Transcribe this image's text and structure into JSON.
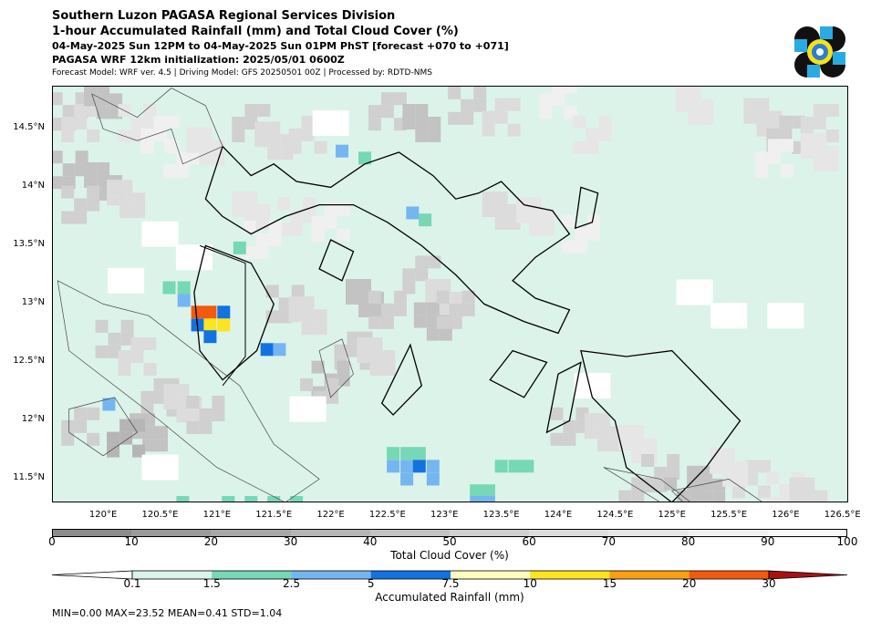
{
  "title": {
    "line1": "Southern Luzon PAGASA Regional Services Division",
    "line2": "1-hour Accumulated Rainfall (mm) and Total Cloud Cover (%)",
    "line3": "04-May-2025 Sun 12PM to 04-May-2025 Sun 01PM PhST [forecast +070 to +071]",
    "line4": "PAGASA WRF 12km initialization: 2025/05/01 0600Z",
    "line5": "Forecast Model: WRF ver. 4.5 | Driving Model: GFS 20250501 00Z | Processed by: RDTD-NMS"
  },
  "map": {
    "lat_labels": [
      "14.5°N",
      "14°N",
      "13.5°N",
      "13°N",
      "12.5°N",
      "12°N",
      "11.5°N"
    ],
    "lon_labels": [
      "120°E",
      "120.5°E",
      "121°E",
      "121.5°E",
      "122°E",
      "122.5°E",
      "123°E",
      "123.5°E",
      "124°E",
      "124.5°E",
      "125°E",
      "125.5°E",
      "126°E",
      "126.5°E"
    ],
    "extent": {
      "lon_min": 119.55,
      "lon_max": 126.55,
      "lat_min": 11.3,
      "lat_max": 14.87
    },
    "background_rain_color": "#dcf3ea",
    "rain_cells": [
      {
        "lon": 121.2,
        "lat": 13.48,
        "mm": 2.0
      },
      {
        "lon": 122.1,
        "lat": 14.31,
        "mm": 4.0
      },
      {
        "lon": 122.3,
        "lat": 14.25,
        "mm": 2.0
      },
      {
        "lon": 122.72,
        "lat": 13.78,
        "mm": 4.0
      },
      {
        "lon": 122.83,
        "lat": 13.72,
        "mm": 2.0
      },
      {
        "lon": 120.58,
        "lat": 13.14,
        "mm": 2.0
      },
      {
        "lon": 120.71,
        "lat": 13.14,
        "mm": 2.0
      },
      {
        "lon": 120.71,
        "lat": 13.03,
        "mm": 4.0
      },
      {
        "lon": 120.83,
        "lat": 12.93,
        "mm": 20.0
      },
      {
        "lon": 120.94,
        "lat": 12.93,
        "mm": 20.0
      },
      {
        "lon": 121.06,
        "lat": 12.93,
        "mm": 6.0
      },
      {
        "lon": 120.83,
        "lat": 12.82,
        "mm": 6.0
      },
      {
        "lon": 120.94,
        "lat": 12.82,
        "mm": 12.0
      },
      {
        "lon": 121.06,
        "lat": 12.82,
        "mm": 12.0
      },
      {
        "lon": 120.94,
        "lat": 12.72,
        "mm": 6.0
      },
      {
        "lon": 121.44,
        "lat": 12.61,
        "mm": 6.0
      },
      {
        "lon": 121.55,
        "lat": 12.61,
        "mm": 4.0
      },
      {
        "lon": 120.05,
        "lat": 12.14,
        "mm": 4.0
      },
      {
        "lon": 122.55,
        "lat": 11.72,
        "mm": 2.0
      },
      {
        "lon": 122.67,
        "lat": 11.72,
        "mm": 2.0
      },
      {
        "lon": 122.78,
        "lat": 11.72,
        "mm": 2.0
      },
      {
        "lon": 122.55,
        "lat": 11.61,
        "mm": 4.0
      },
      {
        "lon": 122.67,
        "lat": 11.61,
        "mm": 4.0
      },
      {
        "lon": 122.78,
        "lat": 11.61,
        "mm": 6.0
      },
      {
        "lon": 122.9,
        "lat": 11.61,
        "mm": 4.0
      },
      {
        "lon": 122.67,
        "lat": 11.5,
        "mm": 4.0
      },
      {
        "lon": 122.9,
        "lat": 11.5,
        "mm": 4.0
      },
      {
        "lon": 123.5,
        "lat": 11.61,
        "mm": 2.0
      },
      {
        "lon": 123.62,
        "lat": 11.61,
        "mm": 2.0
      },
      {
        "lon": 123.73,
        "lat": 11.61,
        "mm": 2.0
      },
      {
        "lon": 123.28,
        "lat": 11.4,
        "mm": 2.0
      },
      {
        "lon": 123.39,
        "lat": 11.4,
        "mm": 2.0
      },
      {
        "lon": 123.28,
        "lat": 11.3,
        "mm": 4.0
      },
      {
        "lon": 123.39,
        "lat": 11.3,
        "mm": 4.0
      },
      {
        "lon": 120.7,
        "lat": 11.3,
        "mm": 2.0
      },
      {
        "lon": 121.1,
        "lat": 11.3,
        "mm": 2.0
      },
      {
        "lon": 121.3,
        "lat": 11.3,
        "mm": 2.0
      },
      {
        "lon": 121.5,
        "lat": 11.3,
        "mm": 2.0
      },
      {
        "lon": 121.7,
        "lat": 11.3,
        "mm": 2.0
      }
    ],
    "cloud_cells": [
      {
        "lon": 119.7,
        "lat": 14.65,
        "pct": 55
      },
      {
        "lon": 119.8,
        "lat": 14.55,
        "pct": 65
      },
      {
        "lon": 120.0,
        "lat": 14.75,
        "pct": 45
      },
      {
        "lon": 120.3,
        "lat": 14.55,
        "pct": 70
      },
      {
        "lon": 119.7,
        "lat": 14.15,
        "pct": 40
      },
      {
        "lon": 120.0,
        "lat": 14.05,
        "pct": 45
      },
      {
        "lon": 119.8,
        "lat": 13.85,
        "pct": 55
      },
      {
        "lon": 120.2,
        "lat": 13.9,
        "pct": 60
      },
      {
        "lon": 120.5,
        "lat": 14.45,
        "pct": 80
      },
      {
        "lon": 120.7,
        "lat": 14.25,
        "pct": 85
      },
      {
        "lon": 120.9,
        "lat": 14.35,
        "pct": 75
      },
      {
        "lon": 121.3,
        "lat": 14.55,
        "pct": 50
      },
      {
        "lon": 121.5,
        "lat": 14.4,
        "pct": 60
      },
      {
        "lon": 121.8,
        "lat": 14.45,
        "pct": 65
      },
      {
        "lon": 122.5,
        "lat": 14.65,
        "pct": 50
      },
      {
        "lon": 122.8,
        "lat": 14.55,
        "pct": 45
      },
      {
        "lon": 123.2,
        "lat": 14.7,
        "pct": 55
      },
      {
        "lon": 123.5,
        "lat": 14.6,
        "pct": 65
      },
      {
        "lon": 124.0,
        "lat": 14.75,
        "pct": 80
      },
      {
        "lon": 124.3,
        "lat": 14.45,
        "pct": 70
      },
      {
        "lon": 125.2,
        "lat": 14.7,
        "pct": 75
      },
      {
        "lon": 125.8,
        "lat": 14.6,
        "pct": 60
      },
      {
        "lon": 126.0,
        "lat": 14.45,
        "pct": 50
      },
      {
        "lon": 126.3,
        "lat": 14.55,
        "pct": 65
      },
      {
        "lon": 126.3,
        "lat": 14.3,
        "pct": 75
      },
      {
        "lon": 125.9,
        "lat": 14.25,
        "pct": 80
      },
      {
        "lon": 121.3,
        "lat": 13.8,
        "pct": 75
      },
      {
        "lon": 121.7,
        "lat": 13.75,
        "pct": 70
      },
      {
        "lon": 122.0,
        "lat": 13.7,
        "pct": 80
      },
      {
        "lon": 121.4,
        "lat": 13.55,
        "pct": 85
      },
      {
        "lon": 123.5,
        "lat": 13.8,
        "pct": 60
      },
      {
        "lon": 123.8,
        "lat": 13.75,
        "pct": 75
      },
      {
        "lon": 124.2,
        "lat": 13.6,
        "pct": 85
      },
      {
        "lon": 121.6,
        "lat": 13.0,
        "pct": 55
      },
      {
        "lon": 121.8,
        "lat": 12.9,
        "pct": 60
      },
      {
        "lon": 122.3,
        "lat": 13.05,
        "pct": 45
      },
      {
        "lon": 122.5,
        "lat": 12.95,
        "pct": 55
      },
      {
        "lon": 122.8,
        "lat": 13.25,
        "pct": 50
      },
      {
        "lon": 123.0,
        "lat": 13.05,
        "pct": 60
      },
      {
        "lon": 122.9,
        "lat": 12.85,
        "pct": 45
      },
      {
        "lon": 123.1,
        "lat": 12.95,
        "pct": 55
      },
      {
        "lon": 122.2,
        "lat": 12.6,
        "pct": 50
      },
      {
        "lon": 122.4,
        "lat": 12.55,
        "pct": 60
      },
      {
        "lon": 122.0,
        "lat": 12.35,
        "pct": 40
      },
      {
        "lon": 121.9,
        "lat": 12.2,
        "pct": 55
      },
      {
        "lon": 120.1,
        "lat": 12.7,
        "pct": 55
      },
      {
        "lon": 120.3,
        "lat": 12.55,
        "pct": 65
      },
      {
        "lon": 120.5,
        "lat": 12.2,
        "pct": 50
      },
      {
        "lon": 120.7,
        "lat": 12.15,
        "pct": 60
      },
      {
        "lon": 120.9,
        "lat": 12.05,
        "pct": 55
      },
      {
        "lon": 120.4,
        "lat": 11.9,
        "pct": 45
      },
      {
        "lon": 120.2,
        "lat": 11.85,
        "pct": 35
      },
      {
        "lon": 119.8,
        "lat": 11.95,
        "pct": 50
      },
      {
        "lon": 124.1,
        "lat": 11.95,
        "pct": 55
      },
      {
        "lon": 124.4,
        "lat": 11.9,
        "pct": 60
      },
      {
        "lon": 124.7,
        "lat": 11.8,
        "pct": 75
      },
      {
        "lon": 124.9,
        "lat": 11.55,
        "pct": 55
      },
      {
        "lon": 125.3,
        "lat": 11.45,
        "pct": 45
      },
      {
        "lon": 125.1,
        "lat": 11.35,
        "pct": 40
      },
      {
        "lon": 125.7,
        "lat": 11.5,
        "pct": 65
      },
      {
        "lon": 126.0,
        "lat": 11.4,
        "pct": 70
      },
      {
        "lon": 126.2,
        "lat": 11.35,
        "pct": 60
      },
      {
        "lon": 125.5,
        "lat": 11.6,
        "pct": 75
      },
      {
        "lon": 124.7,
        "lat": 11.35,
        "pct": 50
      }
    ]
  },
  "cloud_colorbar": {
    "label": "Total Cloud Cover (%)",
    "ticks": [
      "0",
      "10",
      "20",
      "30",
      "40",
      "50",
      "60",
      "70",
      "80",
      "90",
      "100"
    ],
    "colors": [
      "#8c8c8c",
      "#9b9b9b",
      "#a8a8a8",
      "#b5b5b5",
      "#c3c3c3",
      "#d0d0d0",
      "#dcdcdc",
      "#e6e6e6",
      "#f0f0f0",
      "#f8f8f8"
    ]
  },
  "rain_colorbar": {
    "label": "Accumulated Rainfall (mm)",
    "ticks": [
      "0.1",
      "1.5",
      "2.5",
      "5",
      "7.5",
      "10",
      "15",
      "20",
      "30"
    ],
    "colors": [
      "#dcf3ea",
      "#76d8b4",
      "#75b6f0",
      "#1372e0",
      "#fffebf",
      "#fde421",
      "#f8a012",
      "#f25a0f",
      "#a81212"
    ],
    "under_color": "#ffffff",
    "over_color": "#a81212"
  },
  "stats": "MIN=0.00   MAX=23.52   MEAN=0.41   STD=1.04"
}
